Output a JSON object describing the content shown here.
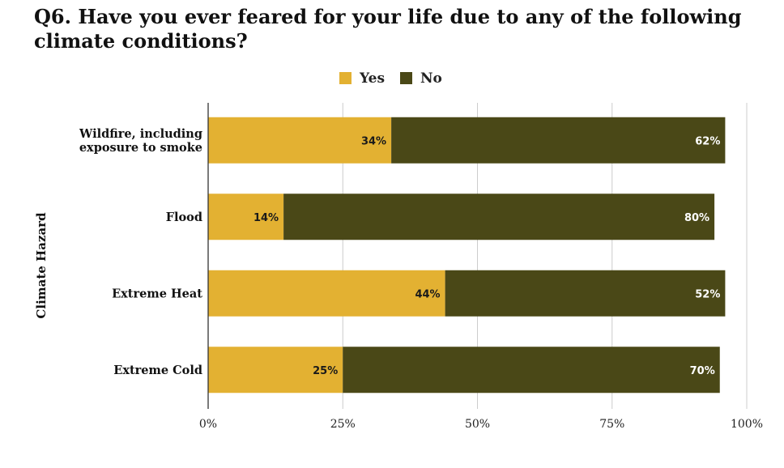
{
  "title": "Q6. Have you ever feared for your life due to any of the following climate conditions?",
  "chart_data": {
    "type": "bar",
    "orientation": "horizontal",
    "stacked": true,
    "title": "Q6. Have you ever feared for your life due to any of the following climate conditions?",
    "ylabel": "Climate Hazard",
    "xlabel": "",
    "xlim": [
      0,
      100
    ],
    "x_ticks": [
      "0%",
      "25%",
      "50%",
      "75%",
      "100%"
    ],
    "categories": [
      "Wildfire, including exposure to smoke",
      "Flood",
      "Extreme Heat",
      "Extreme Cold"
    ],
    "category_lines": [
      [
        "Wildfire, including",
        "exposure to smoke"
      ],
      [
        "Flood"
      ],
      [
        "Extreme Heat"
      ],
      [
        "Extreme Cold"
      ]
    ],
    "series": [
      {
        "name": "Yes",
        "color": "#e3b132",
        "label_color": "#1a1a1a",
        "values": [
          34,
          14,
          44,
          25
        ],
        "labels": [
          "34%",
          "14%",
          "44%",
          "25%"
        ]
      },
      {
        "name": "No",
        "color": "#4a4817",
        "label_color": "#ffffff",
        "values": [
          62,
          80,
          52,
          70
        ],
        "labels": [
          "62%",
          "80%",
          "52%",
          "70%"
        ]
      }
    ],
    "legend_position": "top-center",
    "grid": true
  }
}
